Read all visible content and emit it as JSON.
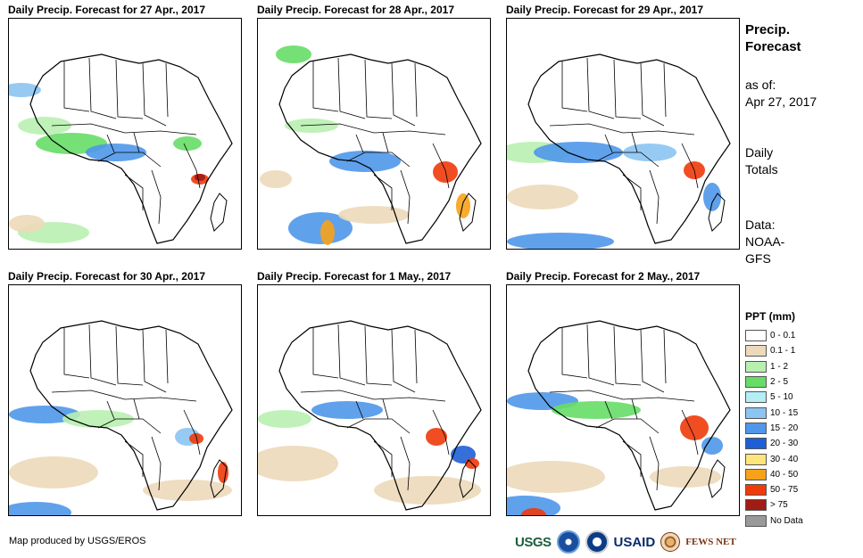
{
  "panels": [
    {
      "title": "Daily Precip. Forecast for 27 Apr., 2017"
    },
    {
      "title": "Daily Precip. Forecast for 28 Apr., 2017"
    },
    {
      "title": "Daily Precip. Forecast for 29 Apr., 2017"
    },
    {
      "title": "Daily Precip. Forecast for 30 Apr., 2017"
    },
    {
      "title": "Daily Precip. Forecast for 1 May., 2017"
    },
    {
      "title": "Daily Precip. Forecast for 2 May., 2017"
    }
  ],
  "sidebar": {
    "title_line1": "Precip.",
    "title_line2": "Forecast",
    "asof_label": "as of:",
    "asof_date": "Apr 27, 2017",
    "totals_line1": "Daily",
    "totals_line2": "Totals",
    "data_line1": "Data:",
    "data_line2": "NOAA-",
    "data_line3": "GFS"
  },
  "legend": {
    "title": "PPT (mm)",
    "items": [
      {
        "label": "0 - 0.1",
        "color": "#ffffff"
      },
      {
        "label": "0.1 - 1",
        "color": "#ecd9b9"
      },
      {
        "label": "1 - 2",
        "color": "#b8f0b0"
      },
      {
        "label": "2 - 5",
        "color": "#66dd66"
      },
      {
        "label": "5 - 10",
        "color": "#b4eef4"
      },
      {
        "label": "10 - 15",
        "color": "#8cc4f2"
      },
      {
        "label": "15 - 20",
        "color": "#4f97ea"
      },
      {
        "label": "20 - 30",
        "color": "#1e5fd6"
      },
      {
        "label": "30 - 40",
        "color": "#ffe67a"
      },
      {
        "label": "40 - 50",
        "color": "#f7a21a"
      },
      {
        "label": "50 - 75",
        "color": "#f03a0a"
      },
      {
        "label": "> 75",
        "color": "#a01c14"
      },
      {
        "label": "No Data",
        "color": "#999999"
      }
    ]
  },
  "footer": {
    "credit": "Map produced by USGS/EROS"
  },
  "logos": {
    "usgs": "USGS",
    "usaid": "USAID",
    "fews": "FEWS NET"
  }
}
